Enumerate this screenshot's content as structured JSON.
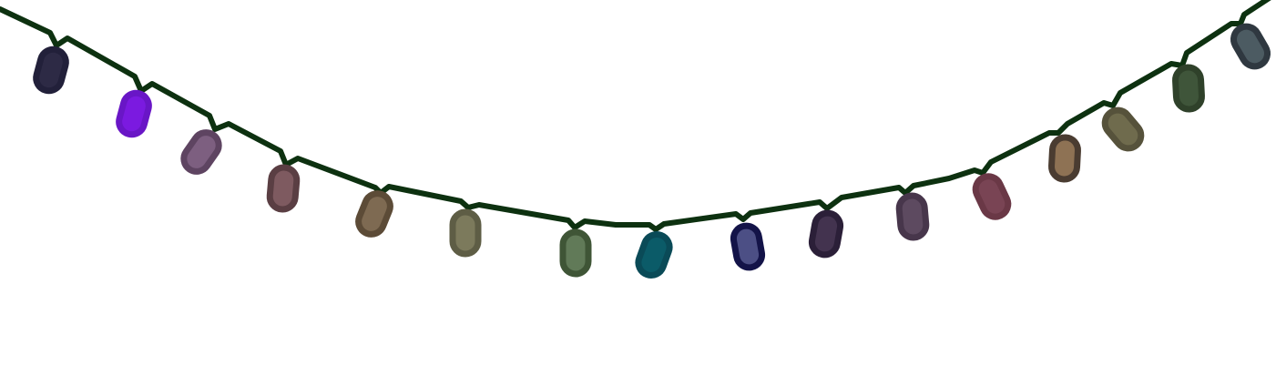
{
  "scene": {
    "subject": "string-lights",
    "wire_color": "#0d3110",
    "background": "#ffffff"
  },
  "bulbs": [
    {
      "name": "bulb-1",
      "fill": "#2d2a45",
      "outline": "#22203a",
      "lit": false
    },
    {
      "name": "bulb-2",
      "fill": "#7b1ae0",
      "outline": "#6916c6",
      "lit": true
    },
    {
      "name": "bulb-3",
      "fill": "#7d5f80",
      "outline": "#5e4461",
      "lit": false
    },
    {
      "name": "bulb-4",
      "fill": "#7e5a60",
      "outline": "#5a3e43",
      "lit": false
    },
    {
      "name": "bulb-5",
      "fill": "#7e6a52",
      "outline": "#5c4b37",
      "lit": false
    },
    {
      "name": "bulb-6",
      "fill": "#7c7a5c",
      "outline": "#5e5d45",
      "lit": false
    },
    {
      "name": "bulb-7",
      "fill": "#617a58",
      "outline": "#3f5536",
      "lit": false
    },
    {
      "name": "bulb-8",
      "fill": "#0b5b68",
      "outline": "#0a4a57",
      "lit": false
    },
    {
      "name": "bulb-9",
      "fill": "#4c4f85",
      "outline": "#131348",
      "lit": false
    },
    {
      "name": "bulb-10",
      "fill": "#43334f",
      "outline": "#2b1f38",
      "lit": false
    },
    {
      "name": "bulb-11",
      "fill": "#5d4a60",
      "outline": "#47364b",
      "lit": false
    },
    {
      "name": "bulb-12",
      "fill": "#794454",
      "outline": "#6a3846",
      "lit": false
    },
    {
      "name": "bulb-13",
      "fill": "#8e7254",
      "outline": "#4a3c31",
      "lit": false
    },
    {
      "name": "bulb-14",
      "fill": "#6f6b4d",
      "outline": "#56523b",
      "lit": false
    },
    {
      "name": "bulb-15",
      "fill": "#3f553a",
      "outline": "#2f412a",
      "lit": false
    },
    {
      "name": "bulb-16",
      "fill": "#4c5b62",
      "outline": "#2f3840",
      "lit": false
    }
  ]
}
